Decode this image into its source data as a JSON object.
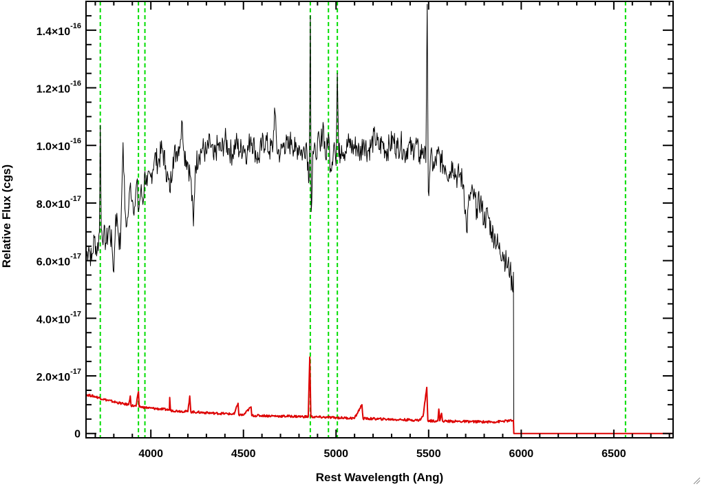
{
  "chart_data": {
    "type": "line",
    "xlabel": "Rest Wavelength (Ang)",
    "ylabel": "Relative Flux (cgs)",
    "xlim": [
      3650,
      6820
    ],
    "ylim": [
      -1.5e-18,
      1.5e-16
    ],
    "x_ticks": [
      {
        "value": 4000,
        "label": "4000"
      },
      {
        "value": 4500,
        "label": "4500"
      },
      {
        "value": 5000,
        "label": "5000"
      },
      {
        "value": 5500,
        "label": "5500"
      },
      {
        "value": 6000,
        "label": "6000"
      },
      {
        "value": 6500,
        "label": "6500"
      }
    ],
    "x_minor_step": 100,
    "y_ticks": [
      {
        "value": 0,
        "mantissa": "0",
        "exponent": ""
      },
      {
        "value": 2e-17,
        "mantissa": "2.0×10",
        "exponent": "-17"
      },
      {
        "value": 4e-17,
        "mantissa": "4.0×10",
        "exponent": "-17"
      },
      {
        "value": 6e-17,
        "mantissa": "6.0×10",
        "exponent": "-17"
      },
      {
        "value": 8e-17,
        "mantissa": "8.0×10",
        "exponent": "-17"
      },
      {
        "value": 1e-16,
        "mantissa": "1.0×10",
        "exponent": "-16"
      },
      {
        "value": 1.2e-16,
        "mantissa": "1.2×10",
        "exponent": "-16"
      },
      {
        "value": 1.4e-16,
        "mantissa": "1.4×10",
        "exponent": "-16"
      }
    ],
    "y_minor_step": 5e-18,
    "series": [
      {
        "color": "#000000",
        "values": [
          [
            3650,
            6.1e-17
          ],
          [
            3665,
            6.5e-17
          ],
          [
            3680,
            6e-17
          ],
          [
            3695,
            6.8e-17
          ],
          [
            3710,
            6.3e-17
          ],
          [
            3722,
            7e-17
          ],
          [
            3727,
            1.07e-16
          ],
          [
            3732,
            7.1e-17
          ],
          [
            3745,
            6.9e-17
          ],
          [
            3760,
            6.6e-17
          ],
          [
            3775,
            7.2e-17
          ],
          [
            3790,
            6.5e-17
          ],
          [
            3800,
            5.6e-17
          ],
          [
            3810,
            7.6e-17
          ],
          [
            3820,
            7.3e-17
          ],
          [
            3835,
            6.4e-17
          ],
          [
            3850,
            1.01e-16
          ],
          [
            3860,
            7.8e-17
          ],
          [
            3870,
            7.2e-17
          ],
          [
            3880,
            7.8e-17
          ],
          [
            3890,
            8.7e-17
          ],
          [
            3900,
            8.1e-17
          ],
          [
            3915,
            7.9e-17
          ],
          [
            3925,
            8.8e-17
          ],
          [
            3933,
            7.7e-17
          ],
          [
            3945,
            8.4e-17
          ],
          [
            3960,
            8.1e-17
          ],
          [
            3968,
            9.1e-17
          ],
          [
            3980,
            8.6e-17
          ],
          [
            4000,
            8.9e-17
          ],
          [
            4020,
            9.6e-17
          ],
          [
            4040,
            9.4e-17
          ],
          [
            4060,
            9.9e-17
          ],
          [
            4080,
            9.3e-17
          ],
          [
            4102,
            8.4e-17
          ],
          [
            4120,
            9.6e-17
          ],
          [
            4140,
            9.8e-17
          ],
          [
            4160,
            1.02e-16
          ],
          [
            4170,
            1.08e-16
          ],
          [
            4180,
            9.8e-17
          ],
          [
            4200,
            9.4e-17
          ],
          [
            4215,
            8.9e-17
          ],
          [
            4230,
            7.2e-17
          ],
          [
            4240,
            9.3e-17
          ],
          [
            4260,
            9.7e-17
          ],
          [
            4280,
            9.9e-17
          ],
          [
            4300,
            9.7e-17
          ],
          [
            4320,
            1.01e-16
          ],
          [
            4340,
            9.5e-17
          ],
          [
            4360,
            1e-16
          ],
          [
            4380,
            9.8e-17
          ],
          [
            4400,
            1.02e-16
          ],
          [
            4420,
            9.9e-17
          ],
          [
            4440,
            9.7e-17
          ],
          [
            4460,
            1.01e-16
          ],
          [
            4480,
            9.8e-17
          ],
          [
            4500,
            1e-16
          ],
          [
            4520,
            9.7e-17
          ],
          [
            4540,
            1.03e-16
          ],
          [
            4560,
            9.9e-17
          ],
          [
            4580,
            9.5e-17
          ],
          [
            4600,
            1e-16
          ],
          [
            4620,
            1.02e-16
          ],
          [
            4640,
            9.8e-17
          ],
          [
            4660,
            1e-16
          ],
          [
            4668,
            1.13e-16
          ],
          [
            4680,
            9.9e-17
          ],
          [
            4700,
            9.7e-17
          ],
          [
            4720,
            1.01e-16
          ],
          [
            4740,
            9.9e-17
          ],
          [
            4760,
            1.02e-16
          ],
          [
            4780,
            9.8e-17
          ],
          [
            4800,
            1e-16
          ],
          [
            4820,
            9.7e-17
          ],
          [
            4840,
            1.01e-16
          ],
          [
            4855,
            8.8e-17
          ],
          [
            4861,
            1.45e-16
          ],
          [
            4866,
            7.7e-17
          ],
          [
            4875,
            9.8e-17
          ],
          [
            4890,
            9.6e-17
          ],
          [
            4900,
            1.02e-16
          ],
          [
            4915,
            9.8e-17
          ],
          [
            4930,
            1.08e-16
          ],
          [
            4945,
            9.5e-17
          ],
          [
            4959,
            1.04e-16
          ],
          [
            4970,
            9.2e-17
          ],
          [
            4990,
            1.01e-16
          ],
          [
            5000,
            9.3e-17
          ],
          [
            5007,
            1.25e-16
          ],
          [
            5015,
            9.6e-17
          ],
          [
            5030,
            1e-16
          ],
          [
            5050,
            9.8e-17
          ],
          [
            5070,
            1.01e-16
          ],
          [
            5090,
            9.9e-17
          ],
          [
            5110,
            1e-16
          ],
          [
            5130,
            9.7e-17
          ],
          [
            5150,
            1.02e-16
          ],
          [
            5170,
            9.8e-17
          ],
          [
            5190,
            1e-16
          ],
          [
            5210,
            1.03e-16
          ],
          [
            5230,
            9.9e-17
          ],
          [
            5250,
            1.01e-16
          ],
          [
            5270,
            9.8e-17
          ],
          [
            5290,
            1e-16
          ],
          [
            5310,
            1.02e-16
          ],
          [
            5330,
            9.9e-17
          ],
          [
            5350,
            1.01e-16
          ],
          [
            5370,
            9.7e-17
          ],
          [
            5390,
            1e-16
          ],
          [
            5410,
            9.8e-17
          ],
          [
            5430,
            1.01e-16
          ],
          [
            5450,
            9.6e-17
          ],
          [
            5470,
            9.9e-17
          ],
          [
            5485,
            9.4e-17
          ],
          [
            5492,
            1.49e-16
          ],
          [
            5498,
            8.4e-17
          ],
          [
            5510,
            9.6e-17
          ],
          [
            5530,
            9.2e-17
          ],
          [
            5550,
            9.7e-17
          ],
          [
            5570,
            9.4e-17
          ],
          [
            5590,
            9.3e-17
          ],
          [
            5610,
            9e-17
          ],
          [
            5630,
            9.4e-17
          ],
          [
            5650,
            8.9e-17
          ],
          [
            5670,
            9e-17
          ],
          [
            5690,
            8.6e-17
          ],
          [
            5705,
            7e-17
          ],
          [
            5720,
            8.2e-17
          ],
          [
            5740,
            8.3e-17
          ],
          [
            5760,
            7.8e-17
          ],
          [
            5780,
            8.1e-17
          ],
          [
            5800,
            7.4e-17
          ],
          [
            5820,
            7.6e-17
          ],
          [
            5840,
            7e-17
          ],
          [
            5860,
            6.8e-17
          ],
          [
            5880,
            6.4e-17
          ],
          [
            5900,
            6.3e-17
          ],
          [
            5920,
            5.9e-17
          ],
          [
            5940,
            5.7e-17
          ],
          [
            5952,
            5e-17
          ],
          [
            5958,
            5.6e-17
          ],
          [
            5960,
            0.0
          ]
        ]
      },
      {
        "color": "#dd0000",
        "values": [
          [
            3650,
            1.35e-17
          ],
          [
            3700,
            1.28e-17
          ],
          [
            3750,
            1.18e-17
          ],
          [
            3800,
            1.1e-17
          ],
          [
            3850,
            1.03e-17
          ],
          [
            3880,
            1e-17
          ],
          [
            3889,
            1.3e-17
          ],
          [
            3893,
            9.7e-18
          ],
          [
            3920,
            9.5e-18
          ],
          [
            3933,
            1.45e-17
          ],
          [
            3937,
            9.3e-18
          ],
          [
            3970,
            9e-18
          ],
          [
            4000,
            8.8e-18
          ],
          [
            4050,
            8.5e-18
          ],
          [
            4100,
            8.2e-18
          ],
          [
            4102,
            1.25e-17
          ],
          [
            4106,
            8e-18
          ],
          [
            4150,
            7.8e-18
          ],
          [
            4200,
            7.6e-18
          ],
          [
            4210,
            1.3e-17
          ],
          [
            4216,
            7.5e-18
          ],
          [
            4250,
            7.4e-18
          ],
          [
            4300,
            7.2e-18
          ],
          [
            4350,
            7e-18
          ],
          [
            4400,
            6.9e-18
          ],
          [
            4450,
            6.7e-18
          ],
          [
            4471,
            1.05e-17
          ],
          [
            4475,
            6.5e-18
          ],
          [
            4500,
            6.4e-18
          ],
          [
            4541,
            9.2e-18
          ],
          [
            4545,
            6.2e-18
          ],
          [
            4600,
            6.2e-18
          ],
          [
            4650,
            6.1e-18
          ],
          [
            4700,
            6e-18
          ],
          [
            4750,
            6e-18
          ],
          [
            4800,
            5.9e-18
          ],
          [
            4850,
            5.8e-18
          ],
          [
            4858,
            2.65e-17
          ],
          [
            4864,
            5.8e-18
          ],
          [
            4900,
            5.7e-18
          ],
          [
            4950,
            5.6e-18
          ],
          [
            5000,
            5.5e-18
          ],
          [
            5050,
            5.4e-18
          ],
          [
            5100,
            5.3e-18
          ],
          [
            5140,
            1e-17
          ],
          [
            5146,
            5.2e-18
          ],
          [
            5200,
            5.1e-18
          ],
          [
            5250,
            5e-18
          ],
          [
            5300,
            4.9e-18
          ],
          [
            5350,
            4.8e-18
          ],
          [
            5400,
            4.7e-18
          ],
          [
            5450,
            4.6e-18
          ],
          [
            5470,
            6e-18
          ],
          [
            5490,
            1.6e-17
          ],
          [
            5496,
            4.4e-18
          ],
          [
            5550,
            4.4e-18
          ],
          [
            5555,
            8.5e-18
          ],
          [
            5560,
            4.4e-18
          ],
          [
            5570,
            7e-18
          ],
          [
            5575,
            4.3e-18
          ],
          [
            5650,
            4.2e-18
          ],
          [
            5750,
            4.1e-18
          ],
          [
            5850,
            4e-18
          ],
          [
            5950,
            4.5e-18
          ],
          [
            5958,
            4.6e-18
          ],
          [
            5960,
            0.0
          ],
          [
            6820,
            0.0
          ]
        ]
      }
    ],
    "vertical_lines": {
      "color": "#00dd00",
      "style": "dashed",
      "x": [
        3727,
        3933,
        3968,
        4861,
        4959,
        5007,
        6563
      ]
    },
    "grid": false
  }
}
